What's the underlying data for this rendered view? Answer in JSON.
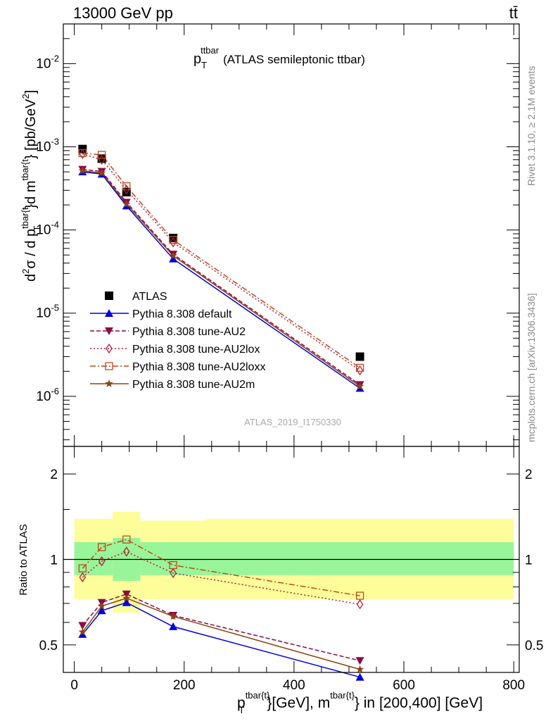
{
  "header": {
    "energy": "13000 GeV pp",
    "process": "tt̄"
  },
  "title": {
    "main": "p",
    "sub": "T",
    "sup": "ttbar",
    "rest": "(ATLAS semileptonic ttbar)"
  },
  "side_labels": {
    "rivet": "Rivet 3.1.10, ≥ 2.1M events",
    "mcplots": "mcplots.cern.ch [arXiv:1306.3436]"
  },
  "watermark": "ATLAS_2019_I1750330",
  "ylabel_main": "d²σ / d p_T^{tbar{t}} d m^{tbar{t}} [pb/GeV²]",
  "ylabel_ratio": "Ratio to ATLAS",
  "xlabel": "p_T^{tbar{t}} [GeV], m^{tbar{t}} in [200,400] [GeV]",
  "xlabel_parts": {
    "p": "p",
    "p_sup": "tbar{t}",
    "p_sub": "T",
    "mid": "}[GeV], m",
    "m_sup": "tbar{t}",
    "end": "} in [200,400] [GeV]"
  },
  "colors": {
    "data": "#000000",
    "default": "#0000dd",
    "au2": "#8b0a44",
    "au2lox": "#b0203a",
    "au2loxx": "#c04a1a",
    "au2m": "#8b4513",
    "band_inner": "#99f599",
    "band_outer": "#fdfd99"
  },
  "chart_data": [
    {
      "type": "line",
      "panel": "main",
      "x_axis": {
        "range": [
          -20,
          810
        ],
        "ticks": [
          0,
          200,
          400,
          600,
          800
        ]
      },
      "y_axis": {
        "scale": "log",
        "range": [
          2.5e-07,
          0.03
        ],
        "tick_labels": [
          "10^-2",
          "10^-3",
          "10^-4",
          "10^-5",
          "10^-6"
        ]
      },
      "x": [
        15,
        50,
        95,
        180,
        520
      ],
      "series": [
        {
          "name": "ATLAS",
          "key": "data",
          "marker": "square",
          "line": "none",
          "values": [
            0.00094,
            0.00072,
            0.000285,
            8e-05,
            3e-06
          ]
        },
        {
          "name": "Pythia 8.308 default",
          "key": "default",
          "marker": "triangle-up",
          "line": "solid",
          "values": [
            0.0005,
            0.00047,
            0.000195,
            4.5e-05,
            1.25e-06
          ]
        },
        {
          "name": "Pythia 8.308 tune-AU2",
          "key": "au2",
          "marker": "triangle-down",
          "line": "dashed",
          "values": [
            0.000535,
            0.000505,
            0.000215,
            5.1e-05,
            1.38e-06
          ]
        },
        {
          "name": "Pythia 8.308 tune-AU2lox",
          "key": "au2lox",
          "marker": "diamond",
          "line": "dotted",
          "values": [
            0.00082,
            0.0007,
            0.000305,
            7.1e-05,
            2.05e-06
          ]
        },
        {
          "name": "Pythia 8.308 tune-AU2loxx",
          "key": "au2loxx",
          "marker": "open-square",
          "line": "dashdot",
          "values": [
            0.00084,
            0.0008,
            0.000335,
            7.6e-05,
            2.2e-06
          ]
        },
        {
          "name": "Pythia 8.308 tune-AU2m",
          "key": "au2m",
          "marker": "star",
          "line": "solid",
          "values": [
            0.000515,
            0.000485,
            0.000205,
            4.9e-05,
            1.32e-06
          ]
        }
      ]
    },
    {
      "type": "line",
      "panel": "ratio",
      "x_axis": {
        "range": [
          -20,
          810
        ],
        "ticks": [
          0,
          200,
          400,
          600,
          800
        ]
      },
      "y_axis": {
        "scale": "log",
        "range": [
          0.4,
          2.5
        ],
        "tick_labels": [
          "0.5",
          "1",
          "2"
        ]
      },
      "uncertainty_bands": {
        "edges": [
          0,
          40,
          70,
          120,
          240,
          800
        ],
        "inner": [
          [
            0.88,
            1.15
          ],
          [
            0.88,
            1.15
          ],
          [
            0.84,
            1.19
          ],
          [
            0.88,
            1.15
          ],
          [
            0.88,
            1.15
          ]
        ],
        "outer": [
          [
            0.725,
            1.39
          ],
          [
            0.725,
            1.39
          ],
          [
            0.65,
            1.47
          ],
          [
            0.725,
            1.37
          ],
          [
            0.725,
            1.39
          ]
        ]
      },
      "x": [
        15,
        50,
        95,
        180,
        520
      ],
      "series": [
        {
          "name": "Pythia 8.308 default",
          "key": "default",
          "values": [
            0.545,
            0.66,
            0.705,
            0.58,
            0.385
          ]
        },
        {
          "name": "Pythia 8.308 tune-AU2",
          "key": "au2",
          "values": [
            0.585,
            0.705,
            0.755,
            0.635,
            0.44
          ]
        },
        {
          "name": "Pythia 8.308 tune-AU2lox",
          "key": "au2lox",
          "values": [
            0.865,
            0.985,
            1.065,
            0.895,
            0.695
          ]
        },
        {
          "name": "Pythia 8.308 tune-AU2loxx",
          "key": "au2loxx",
          "values": [
            0.93,
            1.105,
            1.175,
            0.955,
            0.745
          ]
        },
        {
          "name": "Pythia 8.308 tune-AU2m",
          "key": "au2m",
          "values": [
            0.555,
            0.685,
            0.73,
            0.63,
            0.41
          ]
        }
      ]
    }
  ]
}
